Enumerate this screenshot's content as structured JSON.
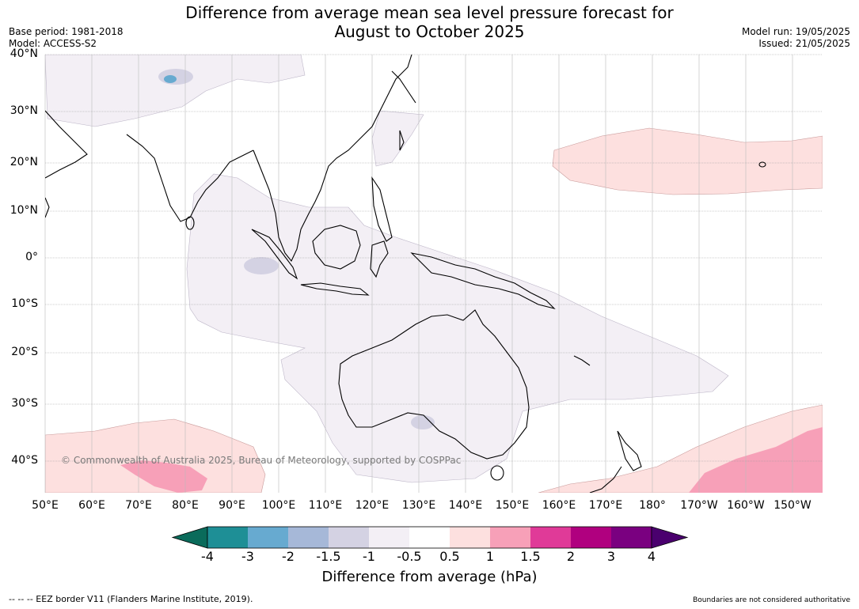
{
  "header": {
    "title_line1": "Difference from average mean sea level pressure forecast for",
    "title_line2": "August to October 2025",
    "base_period": "Base period: 1981-2018",
    "model": "Model: ACCESS-S2",
    "model_run": "Model run: 19/05/2025",
    "issued": "Issued: 21/05/2025"
  },
  "map": {
    "copyright": "© Commonwealth of Australia 2025, Bureau of Meteorology, supported by COSPPac",
    "lat_labels": [
      "40°N",
      "30°N",
      "20°N",
      "10°N",
      "0°",
      "10°S",
      "20°S",
      "30°S",
      "40°S"
    ],
    "lon_labels": [
      "50°E",
      "60°E",
      "70°E",
      "80°E",
      "90°E",
      "100°E",
      "110°E",
      "120°E",
      "130°E",
      "140°E",
      "150°E",
      "160°E",
      "170°E",
      "180°",
      "170°W",
      "160°W",
      "150°W"
    ],
    "colors": {
      "land_outline": "#000000",
      "grid": "#888888",
      "anomaly_minus_0_5_to_minus_1": "#f3eff5",
      "anomaly_minus_1_to_minus_1_5": "#d4d2e3",
      "anomaly_0_5_to_1": "#fde0df",
      "anomaly_1_to_1_5": "#f7a0b8"
    }
  },
  "colorbar": {
    "title": "Difference from average (hPa)",
    "tick_labels": [
      "-4",
      "-3",
      "-2",
      "-1.5",
      "-1",
      "-0.5",
      "0.5",
      "1",
      "1.5",
      "2",
      "3",
      "4"
    ],
    "segment_colors": [
      "#0a6b5b",
      "#1e8f96",
      "#67aad0",
      "#a6b8d8",
      "#d4d2e3",
      "#f3eff5",
      "#ffffff",
      "#fde0df",
      "#f7a0b8",
      "#e03a98",
      "#b0007f",
      "#7a0080",
      "#4a006e"
    ]
  },
  "footer": {
    "eez_note": "-- -- -- EEZ border V11 (Flanders Marine Institute, 2019).",
    "boundary_note": "Boundaries are not considered authoritative"
  }
}
